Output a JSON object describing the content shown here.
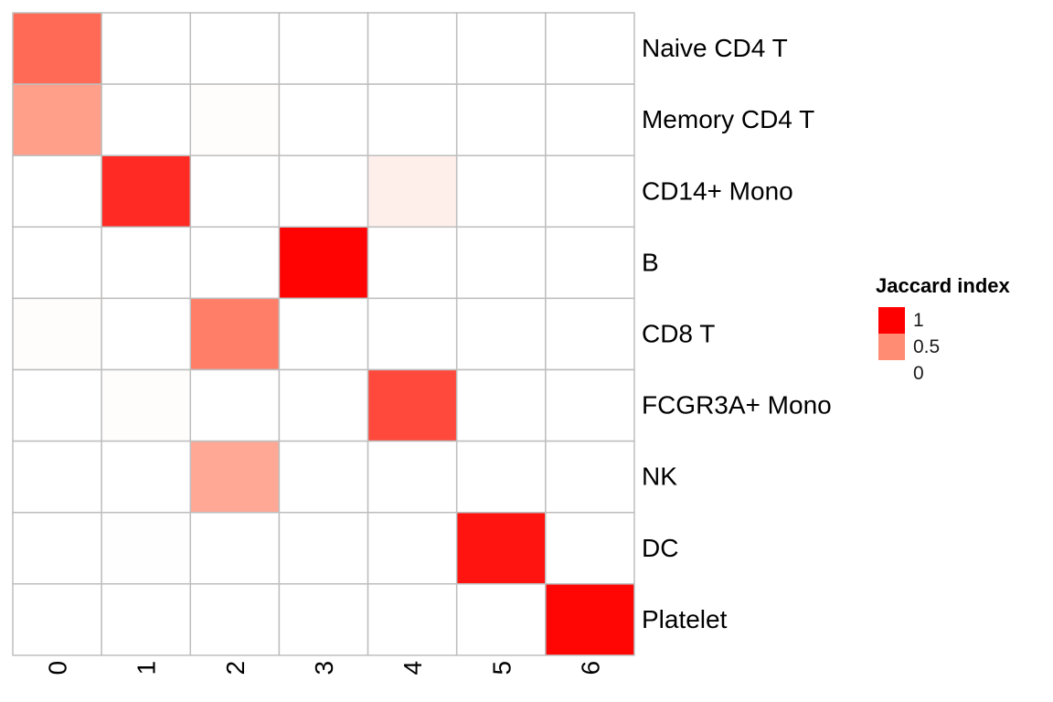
{
  "chart_data": {
    "type": "heatmap",
    "title": "",
    "xlabel": "",
    "ylabel": "",
    "columns": [
      "0",
      "1",
      "2",
      "3",
      "4",
      "5",
      "6"
    ],
    "rows": [
      "Naive CD4 T",
      "Memory CD4 T",
      "CD14+ Mono",
      "B",
      "CD8 T",
      "FCGR3A+ Mono",
      "NK",
      "DC",
      "Platelet"
    ],
    "values": [
      [
        0.62,
        0,
        0,
        0,
        0,
        0,
        0
      ],
      [
        0.42,
        0,
        0.01,
        0,
        0,
        0,
        0
      ],
      [
        0,
        0.85,
        0,
        0,
        0.07,
        0,
        0
      ],
      [
        0,
        0,
        0,
        0.99,
        0,
        0,
        0
      ],
      [
        0.01,
        0,
        0.55,
        0,
        0,
        0,
        0
      ],
      [
        0,
        0.01,
        0,
        0,
        0.74,
        0,
        0
      ],
      [
        0,
        0,
        0.38,
        0,
        0,
        0,
        0
      ],
      [
        0,
        0.005,
        0,
        0,
        0,
        0.93,
        0
      ],
      [
        0,
        0,
        0,
        0,
        0,
        0,
        0.98
      ]
    ],
    "color_scale": {
      "low": "#FFFFFF",
      "mid": "#FF8C73",
      "high": "#FF0000",
      "range": [
        0,
        1
      ]
    },
    "grid_color": "#BEBEBE",
    "legend": {
      "title": "Jaccard index",
      "placement": "right",
      "items": [
        {
          "label": "1",
          "value": 1,
          "color": "#FF0000"
        },
        {
          "label": "0.5",
          "value": 0.5,
          "color": "#FF8C73"
        },
        {
          "label": "0",
          "value": 0,
          "color": "#FFFFFF"
        }
      ]
    }
  }
}
